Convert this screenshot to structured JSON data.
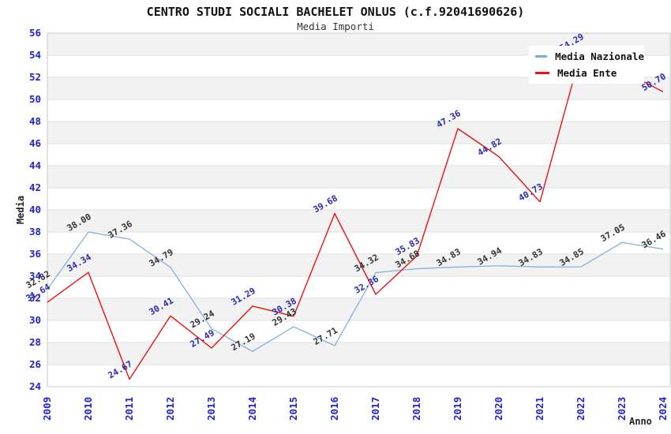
{
  "title": "CENTRO STUDI SOCIALI BACHELET ONLUS (c.f.92041690626)",
  "subtitle": "Media Importi",
  "chart_data": {
    "type": "line",
    "x": [
      "2009",
      "2010",
      "2011",
      "2012",
      "2013",
      "2014",
      "2015",
      "2016",
      "2017",
      "2018",
      "2019",
      "2020",
      "2021",
      "2022",
      "2023",
      "2024"
    ],
    "xlabel": "Anno",
    "ylabel": "Media",
    "ylim": [
      24,
      56
    ],
    "ytick_step": 2,
    "grid": "horizontal gridlines with alternating gray/white bands",
    "legend_position": "top-right overlay",
    "series": [
      {
        "name": "Media Nazionale",
        "color": "#7aace0",
        "label_color": "#333333",
        "stroke_width": 1.2,
        "values": [
          32.82,
          38.0,
          37.36,
          34.79,
          29.24,
          27.19,
          29.43,
          27.71,
          34.32,
          34.68,
          34.83,
          34.94,
          34.83,
          34.85,
          37.05,
          36.46
        ],
        "labels": [
          "32.82",
          "38.00",
          "37.36",
          "34.79",
          "29.24",
          "27.19",
          "29.43",
          "27.71",
          "34.32",
          "34.68",
          "34.83",
          "34.94",
          "34.83",
          "34.85",
          "37.05",
          "36.46"
        ]
      },
      {
        "name": "Media Ente",
        "color": "#ee1111",
        "label_color": "#2a2ab0",
        "stroke_width": 1.4,
        "values": [
          31.64,
          34.34,
          24.67,
          30.41,
          27.49,
          31.29,
          30.38,
          39.68,
          32.36,
          35.83,
          47.36,
          44.82,
          40.73,
          54.29,
          52.6,
          50.7
        ],
        "labels": [
          "31.64",
          "34.34",
          "24.67",
          "30.41",
          "27.49",
          "31.29",
          "30.38",
          "39.68",
          "32.36",
          "35.83",
          "47.36",
          "44.82",
          "40.73",
          "54.29",
          "",
          "50.70"
        ]
      }
    ]
  },
  "colors": {
    "tick_label": "#2222cc",
    "axis_title": "#222222",
    "band_gray": "#f2f2f2",
    "band_white": "#ffffff",
    "gridline": "#e0e0e0",
    "plot_border": "#c9c9c9"
  }
}
